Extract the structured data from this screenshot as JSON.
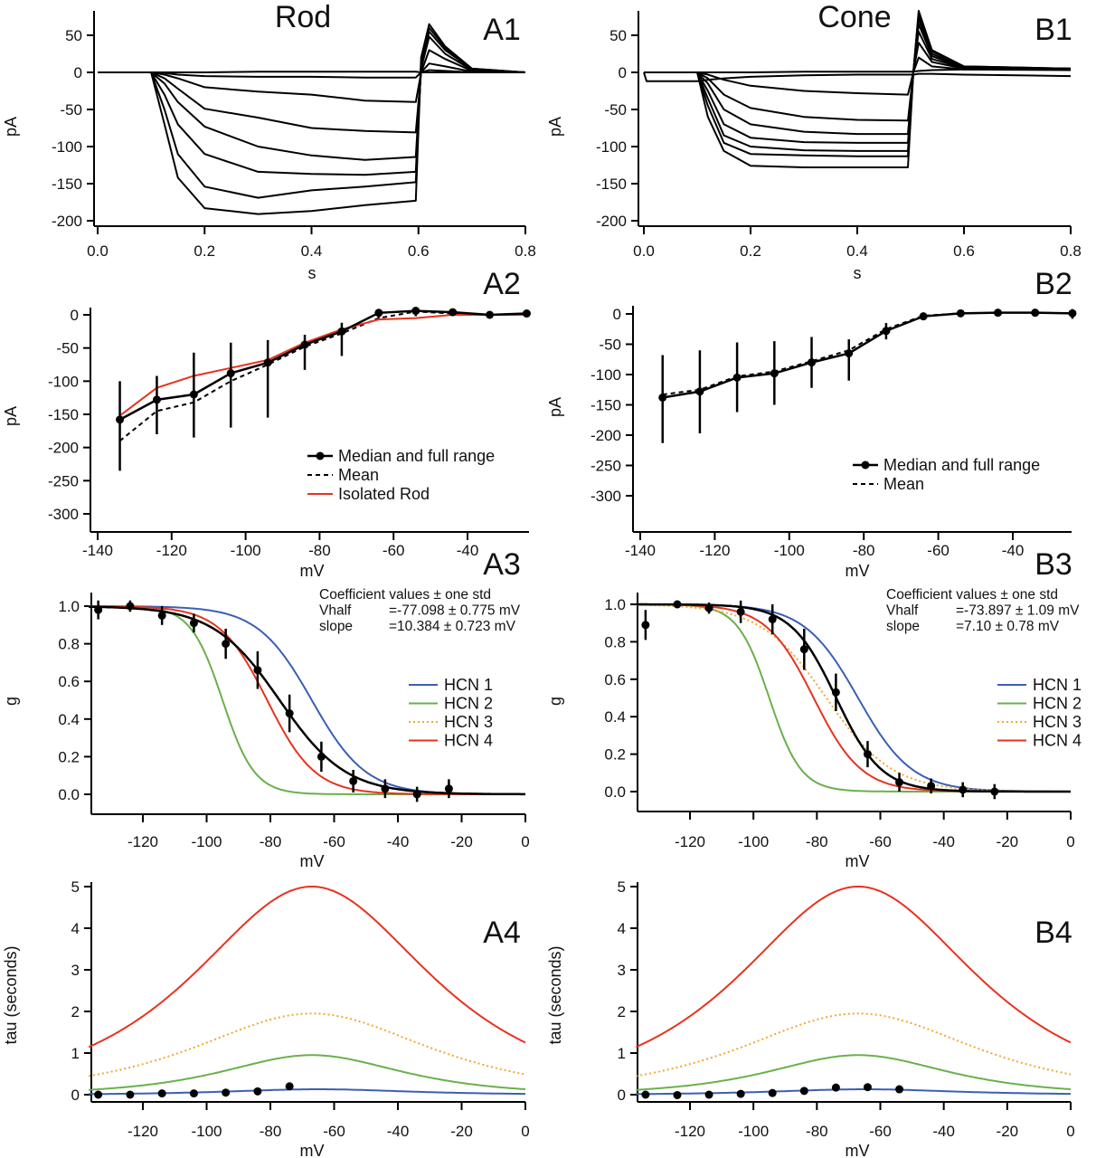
{
  "chart_data": [
    {
      "id": "A1",
      "type": "line",
      "title": "Rod",
      "panel_label": "A1",
      "xlabel": "s",
      "ylabel": "pA",
      "xlim": [
        0,
        0.8
      ],
      "ylim": [
        -200,
        60
      ],
      "xticks": [
        "0.0",
        "0.2",
        "0.4",
        "0.6",
        "0.8"
      ],
      "yticks": [
        "50",
        "0",
        "-50",
        "-100",
        "-150",
        "-200"
      ],
      "traces": {
        "t": [
          0,
          0.1,
          0.125,
          0.15,
          0.2,
          0.3,
          0.4,
          0.5,
          0.595,
          0.605,
          0.62,
          0.65,
          0.7,
          0.8
        ],
        "series": [
          [
            0,
            0,
            -70,
            -142,
            -183,
            -191,
            -187,
            -179,
            -173,
            20,
            65,
            35,
            5,
            0
          ],
          [
            0,
            0,
            -50,
            -110,
            -154,
            -169,
            -159,
            -154,
            -148,
            15,
            60,
            33,
            5,
            0
          ],
          [
            0,
            0,
            -30,
            -70,
            -110,
            -134,
            -137,
            -138,
            -134,
            10,
            55,
            30,
            4,
            0
          ],
          [
            0,
            0,
            -15,
            -40,
            -73,
            -100,
            -112,
            -118,
            -114,
            5,
            48,
            25,
            3,
            0
          ],
          [
            0,
            0,
            -8,
            -22,
            -49,
            -61,
            -75,
            -79,
            -81,
            0,
            30,
            18,
            2,
            0
          ],
          [
            0,
            0,
            -3,
            -8,
            -20,
            -26,
            -30,
            -38,
            -40,
            0,
            12,
            8,
            1,
            0
          ],
          [
            0,
            0,
            -1,
            -3,
            -5,
            -6,
            -6,
            -7,
            -7,
            0,
            3,
            2,
            0,
            0
          ],
          [
            0,
            0,
            0,
            0,
            0,
            1,
            1,
            1,
            1,
            0,
            0,
            0,
            0,
            0
          ]
        ]
      }
    },
    {
      "id": "B1",
      "type": "line",
      "title": "Cone",
      "panel_label": "B1",
      "xlabel": "s",
      "ylabel": "pA",
      "xlim": [
        0,
        0.8
      ],
      "ylim": [
        -200,
        60
      ],
      "xticks": [
        "0.0",
        "0.2",
        "0.4",
        "0.6",
        "0.8"
      ],
      "yticks": [
        "50",
        "0",
        "-50",
        "-100",
        "-150",
        "-200"
      ],
      "traces": {
        "t": [
          0,
          0.005,
          0.1,
          0.12,
          0.15,
          0.2,
          0.3,
          0.4,
          0.495,
          0.505,
          0.515,
          0.54,
          0.6,
          0.8
        ],
        "series": [
          [
            0,
            0,
            0,
            -60,
            -106,
            -126,
            -128,
            -128,
            -128,
            0,
            83,
            30,
            8,
            5
          ],
          [
            0,
            0,
            0,
            -45,
            -95,
            -110,
            -112,
            -113,
            -113,
            0,
            78,
            28,
            8,
            5
          ],
          [
            0,
            0,
            0,
            -35,
            -85,
            -100,
            -105,
            -106,
            -106,
            0,
            72,
            25,
            7,
            5
          ],
          [
            0,
            0,
            0,
            -25,
            -70,
            -88,
            -94,
            -95,
            -95,
            0,
            65,
            22,
            6,
            5
          ],
          [
            0,
            0,
            0,
            -15,
            -50,
            -70,
            -80,
            -83,
            -83,
            0,
            55,
            18,
            6,
            5
          ],
          [
            0,
            0,
            0,
            -8,
            -30,
            -48,
            -60,
            -64,
            -65,
            0,
            40,
            14,
            5,
            4
          ],
          [
            0,
            0,
            0,
            -3,
            -10,
            -18,
            -25,
            -28,
            -30,
            0,
            20,
            8,
            4,
            3
          ],
          [
            0,
            -12,
            -12,
            -10,
            -8,
            -6,
            -4,
            -3,
            -3,
            -3,
            -2,
            -2,
            -3,
            -5
          ],
          [
            0,
            0,
            0,
            0,
            0,
            0,
            1,
            1,
            1,
            1,
            2,
            3,
            4,
            5
          ]
        ]
      }
    },
    {
      "id": "A2",
      "type": "line",
      "panel_label": "A2",
      "xlabel": "mV",
      "ylabel": "pA",
      "xlim": [
        -142,
        -23
      ],
      "ylim": [
        -327,
        11
      ],
      "xticks": [
        "-140",
        "-120",
        "-100",
        "-80",
        "-60",
        "-40"
      ],
      "yticks": [
        "0",
        "-50",
        "-100",
        "-150",
        "-200",
        "-250",
        "-300"
      ],
      "x": [
        -134,
        -124,
        -114,
        -104,
        -94,
        -84,
        -74,
        -64,
        -54,
        -44,
        -34,
        -24
      ],
      "median": {
        "name": "Median and full range",
        "values": [
          -158,
          -128,
          -120,
          -88,
          -72,
          -45,
          -25,
          3,
          6,
          4,
          0,
          2
        ],
        "range": [
          [
            -235,
            -100
          ],
          [
            -180,
            -92
          ],
          [
            -185,
            -57
          ],
          [
            -170,
            -42
          ],
          [
            -155,
            -38
          ],
          [
            -83,
            -30
          ],
          [
            -62,
            -12
          ],
          [
            -5,
            5
          ],
          [
            -2,
            12
          ],
          [
            0,
            8
          ],
          [
            -4,
            4
          ],
          [
            -2,
            5
          ]
        ]
      },
      "series": [
        {
          "name": "Mean",
          "style": "dashed",
          "color": "#000000",
          "values": [
            -190,
            -145,
            -132,
            -100,
            -75,
            -48,
            -28,
            -5,
            5,
            2,
            0,
            2
          ]
        },
        {
          "name": "Isolated Rod",
          "style": "solid",
          "color": "#e8321e",
          "values": [
            -152,
            -110,
            -92,
            -80,
            -68,
            -42,
            -22,
            -7,
            -5,
            0,
            0,
            0
          ]
        }
      ],
      "legend": "bottom-right"
    },
    {
      "id": "B2",
      "type": "line",
      "panel_label": "B2",
      "xlabel": "mV",
      "ylabel": "pA",
      "xlim": [
        -142,
        -23
      ],
      "ylim": [
        -327,
        11
      ],
      "xticks": [
        "-140",
        "-120",
        "-100",
        "-80",
        "-60",
        "-40"
      ],
      "yticks": [
        "0",
        "-50",
        "-100",
        "-150",
        "-200",
        "-250",
        "-300"
      ],
      "x": [
        -134,
        -124,
        -114,
        -104,
        -94,
        -84,
        -74,
        -64,
        -54,
        -44,
        -34,
        -24
      ],
      "median": {
        "name": "Median and full range",
        "values": [
          -138,
          -128,
          -105,
          -98,
          -80,
          -65,
          -28,
          -4,
          1,
          2,
          2,
          1
        ],
        "range": [
          [
            -213,
            -68
          ],
          [
            -197,
            -60
          ],
          [
            -162,
            -47
          ],
          [
            -150,
            -45
          ],
          [
            -122,
            -38
          ],
          [
            -110,
            -42
          ],
          [
            -42,
            -15
          ],
          [
            -10,
            2
          ],
          [
            -2,
            3
          ],
          [
            -1,
            4
          ],
          [
            -1,
            3
          ],
          [
            -8,
            8
          ]
        ]
      },
      "series": [
        {
          "name": "Mean",
          "style": "dashed",
          "color": "#000000",
          "values": [
            -133,
            -125,
            -103,
            -95,
            -78,
            -60,
            -25,
            -3,
            1,
            2,
            2,
            1
          ]
        }
      ],
      "legend": "bottom-right"
    },
    {
      "id": "A3",
      "type": "line",
      "panel_label": "A3",
      "xlabel": "mV",
      "ylabel": "g",
      "xlim": [
        -137,
        0
      ],
      "ylim": [
        -0.06,
        1.05
      ],
      "xticks": [
        "-120",
        "-100",
        "-80",
        "-60",
        "-40",
        "-20",
        "0"
      ],
      "yticks": [
        "1.0",
        "0.8",
        "0.6",
        "0.4",
        "0.2",
        "0.0"
      ],
      "coefficients": {
        "header": "Coefficient values ± one std",
        "rows": [
          [
            "Vhalf",
            "=-77.098 ± 0.775 mV"
          ],
          [
            "slope",
            "=10.384 ± 0.723 mV"
          ]
        ]
      },
      "fit": {
        "model": "boltzmann",
        "vhalf": -77.098,
        "slope": 10.384,
        "color": "#000000"
      },
      "x": [
        -134,
        -124,
        -114,
        -104,
        -94,
        -84,
        -74,
        -64,
        -54,
        -44,
        -34,
        -24
      ],
      "median": {
        "values": [
          0.98,
          1.0,
          0.95,
          0.91,
          0.8,
          0.66,
          0.43,
          0.2,
          0.07,
          0.03,
          0.0,
          0.03
        ],
        "err": [
          0.05,
          0.03,
          0.05,
          0.05,
          0.08,
          0.1,
          0.1,
          0.08,
          0.06,
          0.05,
          0.04,
          0.05
        ]
      },
      "series": [
        {
          "name": "HCN 1",
          "color": "#3a5fb5",
          "style": "solid",
          "model": "boltzmann",
          "vhalf": -67,
          "slope": 8.5
        },
        {
          "name": "HCN 2",
          "color": "#6ab04c",
          "style": "solid",
          "model": "boltzmann",
          "vhalf": -95,
          "slope": 5
        },
        {
          "name": "HCN 3",
          "color": "#f0a830",
          "style": "dotted",
          "model": "boltzmann",
          "vhalf": -77,
          "slope": 10.4
        },
        {
          "name": "HCN 4",
          "color": "#e8321e",
          "style": "solid",
          "model": "boltzmann",
          "vhalf": -81,
          "slope": 7.5
        }
      ],
      "legend": "right"
    },
    {
      "id": "B3",
      "type": "line",
      "panel_label": "B3",
      "xlabel": "mV",
      "ylabel": "g",
      "xlim": [
        -137,
        0
      ],
      "ylim": [
        -0.06,
        1.05
      ],
      "xticks": [
        "-120",
        "-100",
        "-80",
        "-60",
        "-40",
        "-20",
        "0"
      ],
      "yticks": [
        "1.0",
        "0.8",
        "0.6",
        "0.4",
        "0.2",
        "0.0"
      ],
      "coefficients": {
        "header": "Coefficient values ± one std",
        "rows": [
          [
            "Vhalf",
            "=-73.897 ± 1.09 mV"
          ],
          [
            "slope",
            "=7.10  ± 0.78 mV"
          ]
        ]
      },
      "fit": {
        "model": "boltzmann",
        "vhalf": -73.897,
        "slope": 7.1,
        "color": "#000000"
      },
      "x": [
        -134,
        -124,
        -114,
        -104,
        -94,
        -84,
        -74,
        -64,
        -54,
        -44,
        -34,
        -24
      ],
      "median": {
        "values": [
          0.89,
          1.0,
          0.98,
          0.96,
          0.92,
          0.76,
          0.53,
          0.2,
          0.05,
          0.03,
          0.01,
          0.0
        ],
        "err": [
          0.08,
          0.02,
          0.03,
          0.06,
          0.08,
          0.11,
          0.1,
          0.07,
          0.05,
          0.04,
          0.04,
          0.04
        ]
      },
      "series": [
        {
          "name": "HCN 1",
          "color": "#3a5fb5",
          "style": "solid",
          "model": "boltzmann",
          "vhalf": -67,
          "slope": 8.5
        },
        {
          "name": "HCN 2",
          "color": "#6ab04c",
          "style": "solid",
          "model": "boltzmann",
          "vhalf": -95,
          "slope": 5
        },
        {
          "name": "HCN 3",
          "color": "#f0a830",
          "style": "dotted",
          "model": "boltzmann",
          "vhalf": -77,
          "slope": 10.4
        },
        {
          "name": "HCN 4",
          "color": "#e8321e",
          "style": "solid",
          "model": "boltzmann",
          "vhalf": -81,
          "slope": 7.5
        }
      ],
      "legend": "right"
    },
    {
      "id": "A4",
      "type": "line",
      "panel_label": "A4",
      "xlabel": "mV",
      "ylabel": "tau (seconds)",
      "xlim": [
        -137,
        0
      ],
      "ylim": [
        -0.15,
        5.1
      ],
      "xticks": [
        "-120",
        "-100",
        "-80",
        "-60",
        "-40",
        "-20",
        "0"
      ],
      "yticks": [
        "5",
        "4",
        "3",
        "2",
        "1",
        "0"
      ],
      "x": [
        -134,
        -124,
        -114,
        -104,
        -94,
        -84,
        -74
      ],
      "median": {
        "values": [
          0.0,
          0.0,
          0.03,
          0.03,
          0.05,
          0.08,
          0.2
        ]
      },
      "series": [
        {
          "color": "#e8321e",
          "style": "solid",
          "model": "bell",
          "peak": 5,
          "v_peak": -67,
          "width": 32.5
        },
        {
          "color": "#f0a830",
          "style": "dotted",
          "model": "bell",
          "peak": 1.95,
          "v_peak": -67,
          "width": 32.5
        },
        {
          "color": "#6ab04c",
          "style": "solid",
          "model": "bell",
          "peak": 0.95,
          "v_peak": -67,
          "width": 25
        },
        {
          "color": "#3a5fb5",
          "style": "solid",
          "model": "bell",
          "peak": 0.13,
          "v_peak": -65,
          "width": 25
        }
      ]
    },
    {
      "id": "B4",
      "type": "line",
      "panel_label": "B4",
      "xlabel": "mV",
      "ylabel": "tau (seconds)",
      "xlim": [
        -137,
        0
      ],
      "ylim": [
        -0.15,
        5.1
      ],
      "xticks": [
        "-120",
        "-100",
        "-80",
        "-60",
        "-40",
        "-20",
        "0"
      ],
      "yticks": [
        "5",
        "4",
        "3",
        "2",
        "1",
        "0"
      ],
      "x": [
        -134,
        -124,
        -114,
        -104,
        -94,
        -84,
        -74,
        -64,
        -54
      ],
      "median": {
        "values": [
          0.0,
          -0.01,
          0.0,
          0.02,
          0.04,
          0.09,
          0.17,
          0.18,
          0.13
        ]
      },
      "series": [
        {
          "color": "#e8321e",
          "style": "solid",
          "model": "bell",
          "peak": 5,
          "v_peak": -67,
          "width": 32.5
        },
        {
          "color": "#f0a830",
          "style": "dotted",
          "model": "bell",
          "peak": 1.95,
          "v_peak": -67,
          "width": 32.5
        },
        {
          "color": "#6ab04c",
          "style": "solid",
          "model": "bell",
          "peak": 0.95,
          "v_peak": -67,
          "width": 25
        },
        {
          "color": "#3a5fb5",
          "style": "solid",
          "model": "bell",
          "peak": 0.13,
          "v_peak": -65,
          "width": 25
        }
      ]
    }
  ]
}
